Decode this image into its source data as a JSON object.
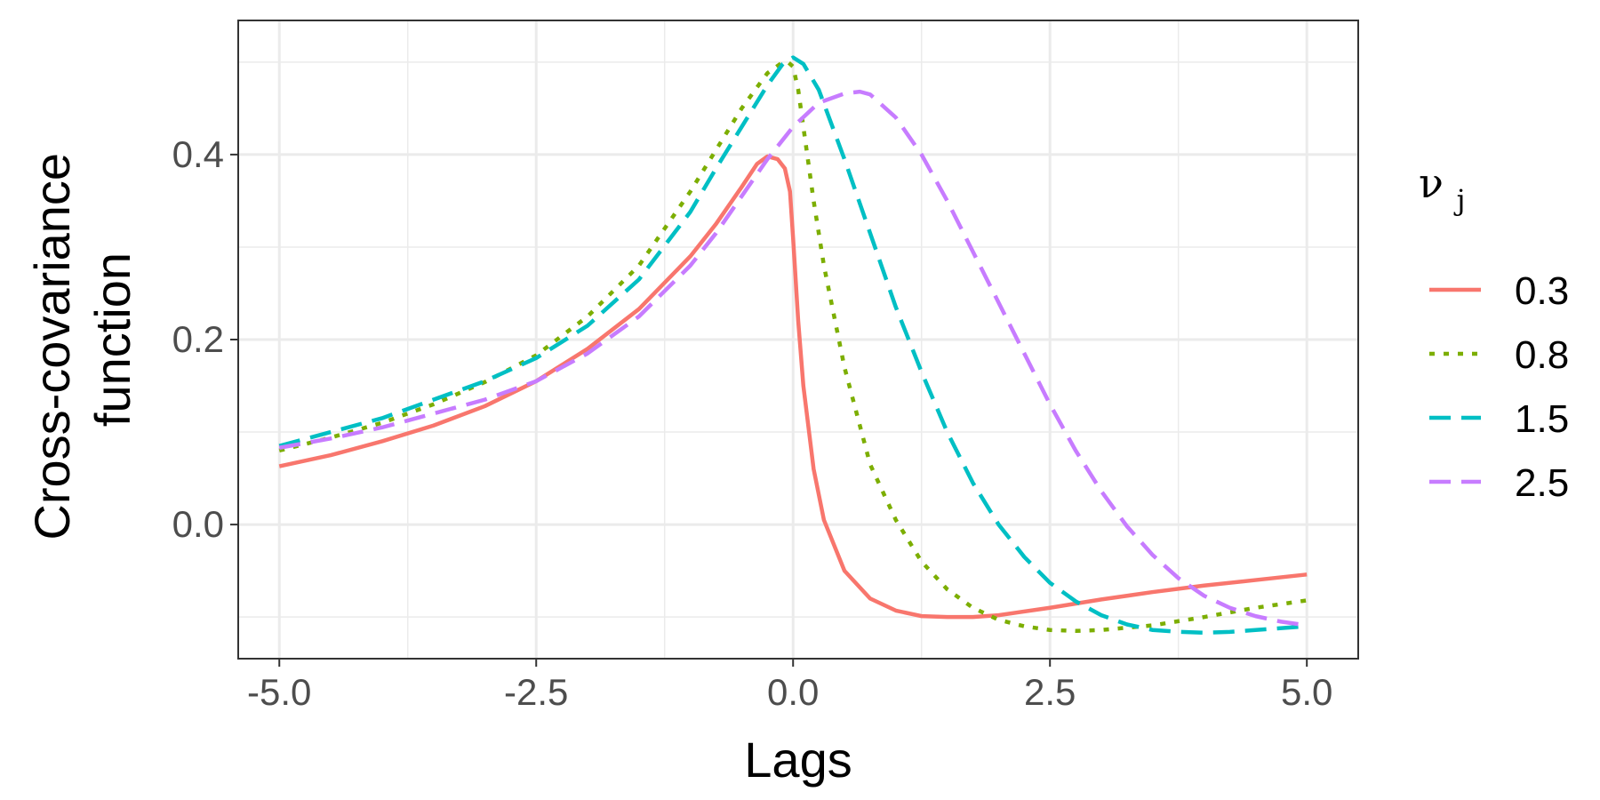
{
  "chart_data": {
    "type": "line",
    "title": "",
    "xlabel": "Lags",
    "ylabel_lines": [
      "Cross-covariance",
      "function"
    ],
    "xlim": [
      -5.4,
      5.5
    ],
    "ylim": [
      -0.145,
      0.545
    ],
    "xticks": [
      -5.0,
      -2.5,
      0.0,
      2.5,
      5.0
    ],
    "xtick_labels": [
      "-5.0",
      "-2.5",
      "0.0",
      "2.5",
      "5.0"
    ],
    "yticks": [
      0.0,
      0.2,
      0.4
    ],
    "ytick_labels": [
      "0.0",
      "0.2",
      "0.4"
    ],
    "y_minor_ticks": [
      -0.1,
      0.1,
      0.3,
      0.5
    ],
    "x_minor_ticks": [
      -3.75,
      -1.25,
      1.25,
      3.75
    ],
    "grid": true,
    "legend": {
      "position": "right",
      "title_main": "ν",
      "title_sub": "j"
    },
    "series": [
      {
        "name": "0.3",
        "color": "#F8766D",
        "dash": "solid",
        "x": [
          -5,
          -4.5,
          -4,
          -3.5,
          -3,
          -2.5,
          -2,
          -1.5,
          -1,
          -0.75,
          -0.5,
          -0.35,
          -0.25,
          -0.15,
          -0.08,
          -0.03,
          0,
          0.05,
          0.1,
          0.2,
          0.3,
          0.5,
          0.75,
          1,
          1.25,
          1.5,
          1.75,
          2,
          2.5,
          3,
          3.5,
          4,
          4.5,
          5
        ],
        "y": [
          0.063,
          0.075,
          0.09,
          0.107,
          0.128,
          0.155,
          0.19,
          0.233,
          0.29,
          0.325,
          0.365,
          0.39,
          0.398,
          0.395,
          0.385,
          0.36,
          0.31,
          0.22,
          0.15,
          0.06,
          0.005,
          -0.05,
          -0.08,
          -0.093,
          -0.099,
          -0.1,
          -0.1,
          -0.098,
          -0.09,
          -0.081,
          -0.073,
          -0.066,
          -0.06,
          -0.054
        ]
      },
      {
        "name": "0.8",
        "color": "#7CAE00",
        "dash": "dotted",
        "x": [
          -5,
          -4.5,
          -4,
          -3.5,
          -3,
          -2.5,
          -2,
          -1.5,
          -1,
          -0.75,
          -0.5,
          -0.25,
          -0.1,
          -0.05,
          0,
          0.05,
          0.1,
          0.2,
          0.3,
          0.5,
          0.75,
          1,
          1.25,
          1.5,
          1.75,
          2,
          2.25,
          2.5,
          2.75,
          3,
          3.5,
          4,
          4.5,
          5
        ],
        "y": [
          0.08,
          0.094,
          0.11,
          0.13,
          0.154,
          0.183,
          0.225,
          0.28,
          0.36,
          0.405,
          0.45,
          0.488,
          0.5,
          0.5,
          0.495,
          0.47,
          0.43,
          0.35,
          0.28,
          0.17,
          0.065,
          0.005,
          -0.04,
          -0.07,
          -0.09,
          -0.103,
          -0.11,
          -0.114,
          -0.115,
          -0.114,
          -0.109,
          -0.1,
          -0.09,
          -0.082
        ]
      },
      {
        "name": "1.5",
        "color": "#00BFC4",
        "dash": "dashed",
        "x": [
          -5,
          -4.5,
          -4,
          -3.5,
          -3,
          -2.5,
          -2,
          -1.5,
          -1,
          -0.75,
          -0.5,
          -0.25,
          -0.1,
          0,
          0.1,
          0.25,
          0.5,
          0.75,
          1,
          1.25,
          1.5,
          1.75,
          2,
          2.25,
          2.5,
          2.75,
          3,
          3.25,
          3.5,
          3.75,
          4,
          4.25,
          4.5,
          5
        ],
        "y": [
          0.085,
          0.1,
          0.115,
          0.135,
          0.155,
          0.18,
          0.215,
          0.265,
          0.338,
          0.385,
          0.43,
          0.475,
          0.498,
          0.505,
          0.498,
          0.47,
          0.395,
          0.315,
          0.235,
          0.165,
          0.1,
          0.045,
          0.0,
          -0.035,
          -0.063,
          -0.083,
          -0.098,
          -0.108,
          -0.114,
          -0.116,
          -0.117,
          -0.116,
          -0.114,
          -0.11
        ]
      },
      {
        "name": "2.5",
        "color": "#C77CFF",
        "dash": "dashed",
        "x": [
          -5,
          -4.5,
          -4,
          -3.5,
          -3,
          -2.5,
          -2,
          -1.5,
          -1,
          -0.75,
          -0.5,
          -0.25,
          0,
          0.25,
          0.5,
          0.65,
          0.75,
          1,
          1.25,
          1.5,
          1.75,
          2,
          2.25,
          2.5,
          2.75,
          3,
          3.25,
          3.5,
          3.75,
          4,
          4.25,
          4.5,
          4.75,
          5
        ],
        "y": [
          0.083,
          0.093,
          0.105,
          0.12,
          0.135,
          0.155,
          0.185,
          0.225,
          0.28,
          0.315,
          0.355,
          0.395,
          0.43,
          0.456,
          0.466,
          0.468,
          0.465,
          0.44,
          0.4,
          0.35,
          0.295,
          0.24,
          0.185,
          0.13,
          0.08,
          0.036,
          -0.002,
          -0.033,
          -0.058,
          -0.077,
          -0.09,
          -0.099,
          -0.105,
          -0.109
        ]
      }
    ]
  }
}
